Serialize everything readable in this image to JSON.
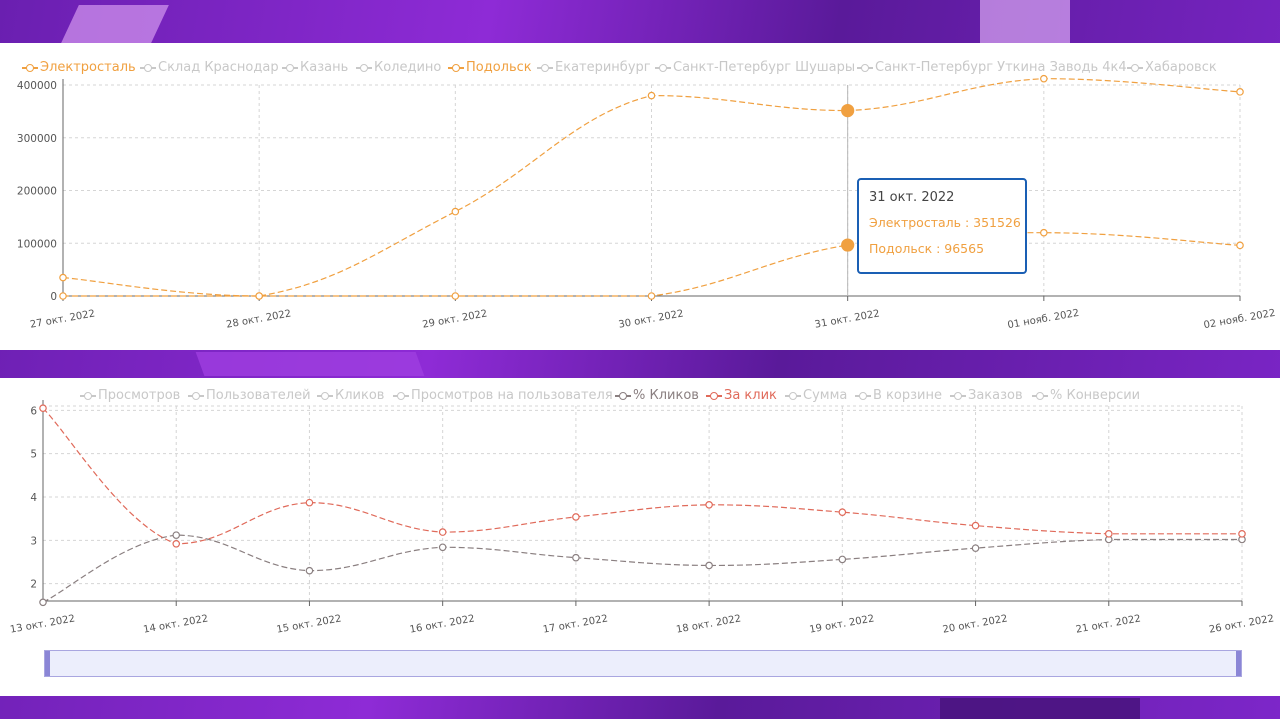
{
  "colors": {
    "orange": "#f0a040",
    "red": "#e06a5a",
    "gray_series": "#8a7f80",
    "inactive": "#c8c8c8",
    "grid": "#d5d5d5",
    "tooltip_border": "#1a5fb4",
    "zoom_fill": "#eceefc",
    "zoom_handle": "#8b86d6"
  },
  "chart_data": [
    {
      "type": "line",
      "legend": [
        {
          "name": "Электросталь",
          "active": true,
          "color": "#f0a040"
        },
        {
          "name": "Склад Краснодар",
          "active": false,
          "color": "#c8c8c8"
        },
        {
          "name": "Казань",
          "active": false,
          "color": "#c8c8c8"
        },
        {
          "name": "Коледино",
          "active": false,
          "color": "#c8c8c8"
        },
        {
          "name": "Подольск",
          "active": true,
          "color": "#f0a040"
        },
        {
          "name": "Екатеринбург",
          "active": false,
          "color": "#c8c8c8"
        },
        {
          "name": "Санкт-Петербург Шушары",
          "active": false,
          "color": "#c8c8c8"
        },
        {
          "name": "Санкт-Петербург Уткина Заводь 4к4",
          "active": false,
          "color": "#c8c8c8"
        },
        {
          "name": "Хабаровск",
          "active": false,
          "color": "#c8c8c8"
        }
      ],
      "categories": [
        "27 окт. 2022",
        "28 окт. 2022",
        "29 окт. 2022",
        "30 окт. 2022",
        "31 окт. 2022",
        "01 нояб. 2022",
        "02 нояб. 2022"
      ],
      "series": [
        {
          "name": "Электросталь",
          "values": [
            35000,
            0,
            160000,
            380000,
            351526,
            412000,
            387000
          ]
        },
        {
          "name": "Подольск",
          "values": [
            0,
            0,
            0,
            0,
            96565,
            120000,
            96000
          ]
        }
      ],
      "ylim": [
        0,
        400000
      ],
      "yticks": [
        "0",
        "100000",
        "200000",
        "300000",
        "400000"
      ],
      "ytick_values": [
        0,
        100000,
        200000,
        300000,
        400000
      ],
      "tooltip": {
        "date": "31 окт. 2022",
        "index": 4,
        "rows": [
          "Электросталь : 351526",
          "Подольск : 96565"
        ]
      }
    },
    {
      "type": "line",
      "legend": [
        {
          "name": "Просмотров",
          "active": false,
          "color": "#c8c8c8"
        },
        {
          "name": "Пользователей",
          "active": false,
          "color": "#c8c8c8"
        },
        {
          "name": "Кликов",
          "active": false,
          "color": "#c8c8c8"
        },
        {
          "name": "Просмотров на пользователя",
          "active": false,
          "color": "#c8c8c8"
        },
        {
          "name": "% Кликов",
          "active": true,
          "color": "#8a7f80"
        },
        {
          "name": "За клик",
          "active": true,
          "color": "#e06a5a"
        },
        {
          "name": "Сумма",
          "active": false,
          "color": "#c8c8c8"
        },
        {
          "name": "В корзине",
          "active": false,
          "color": "#c8c8c8"
        },
        {
          "name": "Заказов",
          "active": false,
          "color": "#c8c8c8"
        },
        {
          "name": "% Конверсии",
          "active": false,
          "color": "#c8c8c8"
        }
      ],
      "categories": [
        "13 окт. 2022",
        "14 окт. 2022",
        "15 окт. 2022",
        "16 окт. 2022",
        "17 окт. 2022",
        "18 окт. 2022",
        "19 окт. 2022",
        "20 окт. 2022",
        "21 окт. 2022",
        "26 окт. 2022"
      ],
      "series": [
        {
          "name": "% Кликов",
          "values": [
            1.57,
            3.12,
            2.3,
            2.84,
            2.6,
            2.42,
            2.56,
            2.82,
            3.02,
            3.02
          ]
        },
        {
          "name": "За клик",
          "values": [
            6.05,
            2.92,
            3.87,
            3.19,
            3.54,
            3.82,
            3.65,
            3.34,
            3.15,
            3.15
          ]
        }
      ],
      "ylim": [
        1.6,
        6.1
      ],
      "yticks": [
        "2",
        "3",
        "4",
        "5",
        "6"
      ],
      "ytick_values": [
        2,
        3,
        4,
        5,
        6
      ]
    }
  ]
}
